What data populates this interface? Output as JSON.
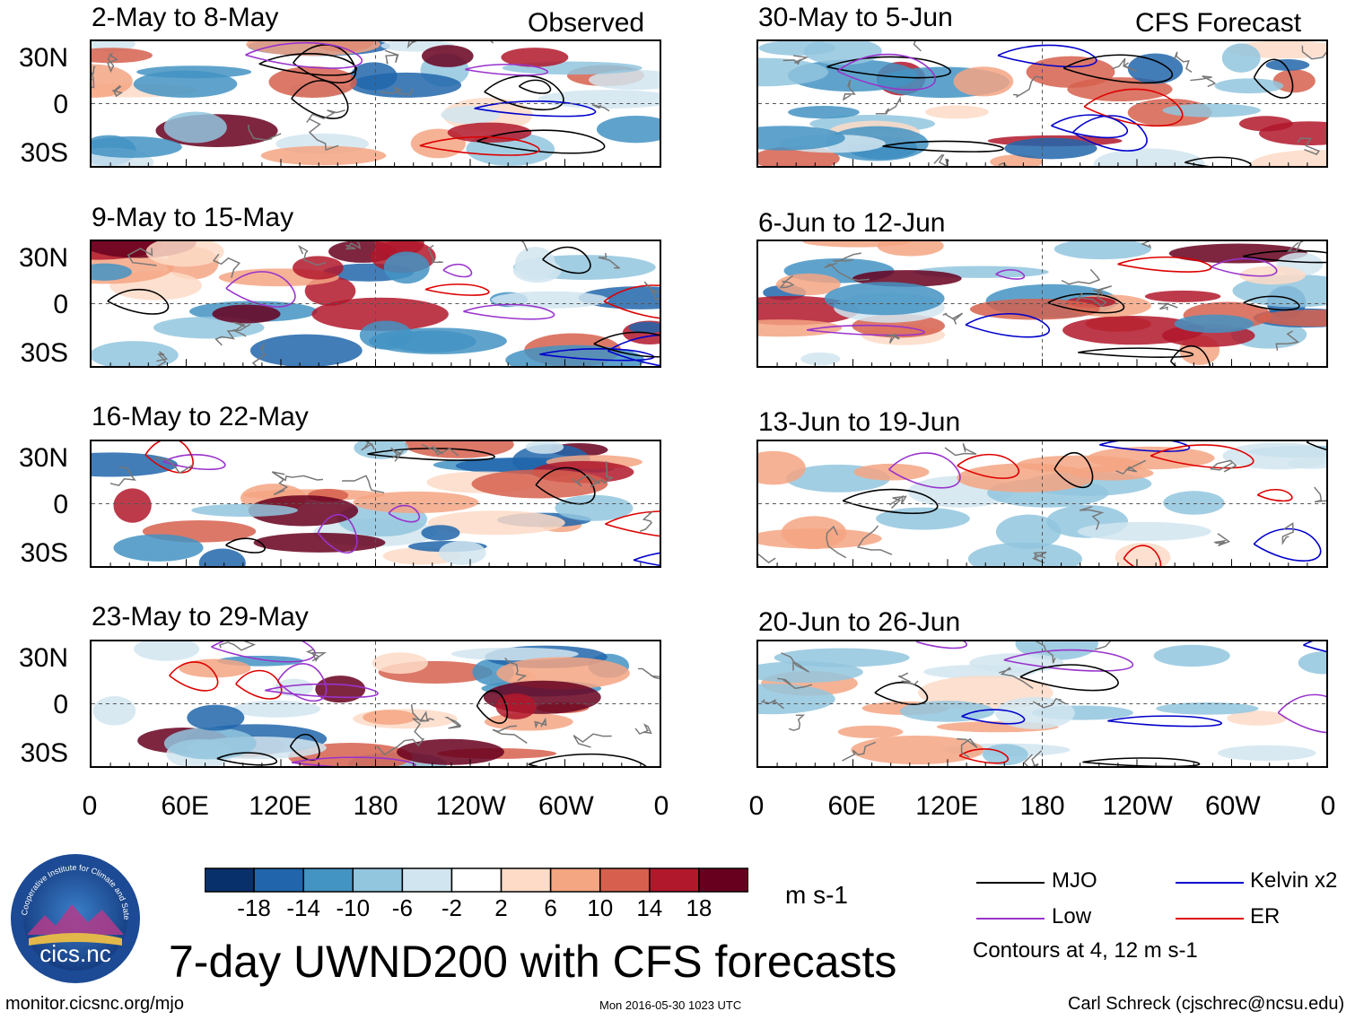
{
  "chart_data": {
    "type": "heatmap",
    "title": "7-day UWND200 with CFS forecasts",
    "observed_label": "Observed",
    "forecast_label": "CFS Forecast",
    "observed_panels": [
      "2-May to 8-May",
      "9-May to 15-May",
      "16-May to 22-May",
      "23-May to 29-May"
    ],
    "forecast_panels": [
      "30-May to 5-Jun",
      "6-Jun to 12-Jun",
      "13-Jun to 19-Jun",
      "20-Jun to 26-Jun"
    ],
    "y_ticks": [
      "30N",
      "0",
      "30S"
    ],
    "x_ticks": [
      "0",
      "60E",
      "120E",
      "180",
      "120W",
      "60W",
      "0"
    ],
    "colorbar": {
      "units": "m s-1",
      "labels": [
        "-18",
        "-14",
        "-10",
        "-6",
        "-2",
        "2",
        "6",
        "10",
        "14",
        "18"
      ],
      "colors": [
        "#08306b",
        "#2166ac",
        "#4393c3",
        "#92c5de",
        "#d1e5f0",
        "#ffffff",
        "#fddbc7",
        "#f4a582",
        "#d6604d",
        "#b2182b",
        "#67001f"
      ]
    },
    "legend": [
      {
        "label": "MJO",
        "color": "#000000"
      },
      {
        "label": "Kelvin x2",
        "color": "#0000cc"
      },
      {
        "label": "Low",
        "color": "#9933cc"
      },
      {
        "label": "ER",
        "color": "#dd0000"
      }
    ],
    "contour_note": "Contours at 4, 12 m s-1"
  },
  "footer": {
    "left": "monitor.cicsnc.org/mjo",
    "center": "Mon 2016-05-30 1023 UTC",
    "right": "Carl Schreck (cjschrec@ncsu.edu)"
  },
  "logo": {
    "name": "cics.nc",
    "ring_text": "Cooperative Institute for Climate and Satellites"
  }
}
